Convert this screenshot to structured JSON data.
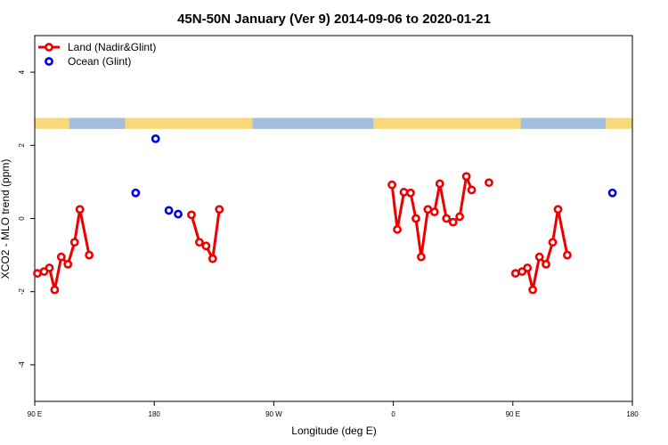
{
  "chart_data": {
    "type": "scatter",
    "title": "45N-50N January (Ver 9)   2014-09-06 to 2020-01-21",
    "xlabel": "Longitude (deg E)",
    "ylabel": "XCO2 - MLO trend (ppm)",
    "xlim": [
      90,
      540
    ],
    "ylim": [
      -5,
      5
    ],
    "x_ticks": [
      {
        "value": 90,
        "label": "90 E"
      },
      {
        "value": 180,
        "label": "180"
      },
      {
        "value": 270,
        "label": "90 W"
      },
      {
        "value": 360,
        "label": "0"
      },
      {
        "value": 450,
        "label": "90 E"
      },
      {
        "value": 540,
        "label": "180"
      }
    ],
    "y_ticks": [
      {
        "value": -4,
        "label": "-4"
      },
      {
        "value": -2,
        "label": "-2"
      },
      {
        "value": 0,
        "label": "0"
      },
      {
        "value": 2,
        "label": "2"
      },
      {
        "value": 4,
        "label": "4"
      }
    ],
    "legend_position": "top-left",
    "map_strip": {
      "ymin": 2.45,
      "ymax": 2.75,
      "land_color": "#f8d878",
      "ocean_color": "#a4bedf"
    },
    "series": [
      {
        "name": "Land (Nadir&Glint)",
        "color": "#ee0000",
        "style": "line-points",
        "segments": [
          [
            [
              92,
              -1.5
            ],
            [
              97,
              -1.45
            ],
            [
              101,
              -1.35
            ],
            [
              105,
              -1.95
            ],
            [
              110,
              -1.05
            ],
            [
              115,
              -1.25
            ],
            [
              120,
              -0.65
            ],
            [
              124,
              0.25
            ],
            [
              131,
              -1.0
            ]
          ],
          [
            [
              208,
              0.1
            ],
            [
              214,
              -0.65
            ],
            [
              219,
              -0.75
            ],
            [
              224,
              -1.1
            ],
            [
              229,
              0.25
            ]
          ],
          [
            [
              359,
              0.92
            ],
            [
              363,
              -0.3
            ],
            [
              368,
              0.72
            ],
            [
              373,
              0.7
            ],
            [
              377,
              0.0
            ],
            [
              381,
              -1.05
            ],
            [
              386,
              0.25
            ],
            [
              391,
              0.18
            ],
            [
              395,
              0.95
            ],
            [
              400,
              0.0
            ],
            [
              405,
              -0.1
            ],
            [
              410,
              0.05
            ],
            [
              415,
              1.15
            ],
            [
              419,
              0.78
            ]
          ],
          [
            [
              452,
              -1.5
            ],
            [
              457,
              -1.45
            ],
            [
              461,
              -1.35
            ],
            [
              465,
              -1.95
            ],
            [
              470,
              -1.05
            ],
            [
              475,
              -1.25
            ],
            [
              480,
              -0.65
            ],
            [
              484,
              0.25
            ],
            [
              491,
              -1.0
            ]
          ]
        ],
        "isolated_points": [
          [
            432,
            0.98
          ]
        ]
      },
      {
        "name": "Ocean (Glint)",
        "color": "#0000ee",
        "style": "points",
        "points": [
          [
            166,
            0.7
          ],
          [
            181,
            2.18
          ],
          [
            191,
            0.22
          ],
          [
            198,
            0.12
          ],
          [
            525,
            0.7
          ]
        ]
      }
    ]
  }
}
